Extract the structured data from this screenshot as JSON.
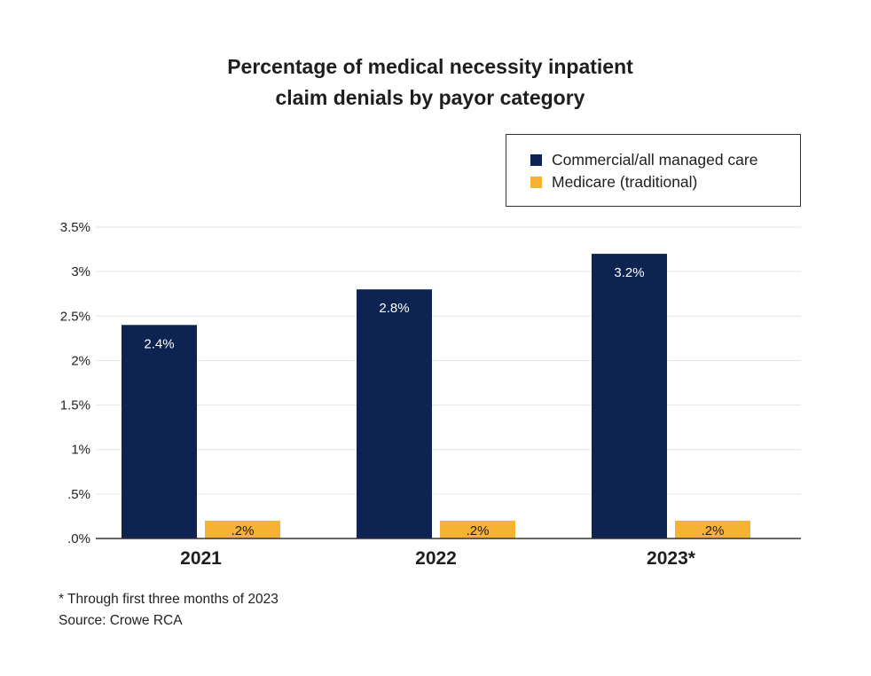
{
  "title_line1": "Percentage of medical necessity inpatient",
  "title_line2": "claim denials by payor category",
  "chart_data": {
    "type": "bar",
    "title": "Percentage of medical necessity inpatient claim denials by payor category",
    "categories": [
      "2021",
      "2022",
      "2023*"
    ],
    "series": [
      {
        "name": "Commercial/all managed care",
        "values": [
          2.4,
          2.8,
          3.2
        ],
        "labels": [
          "2.4%",
          "2.8%",
          "3.2%"
        ],
        "color": "#0d2452"
      },
      {
        "name": "Medicare (traditional)",
        "values": [
          0.2,
          0.2,
          0.2
        ],
        "labels": [
          ".2%",
          ".2%",
          ".2%"
        ],
        "color": "#f6b232"
      }
    ],
    "y_ticks": [
      0,
      0.5,
      1,
      1.5,
      2,
      2.5,
      3,
      3.5
    ],
    "y_tick_labels": [
      ".0%",
      ".5%",
      "1%",
      "1.5%",
      "2%",
      "2.5%",
      "3%",
      "3.5%"
    ],
    "ylim": [
      0,
      3.5
    ],
    "xlabel": "",
    "ylabel": "",
    "grid": true,
    "legend_position": "top-right"
  },
  "notes": {
    "footnote": "* Through first three months of 2023",
    "source": "Source: Crowe RCA"
  }
}
